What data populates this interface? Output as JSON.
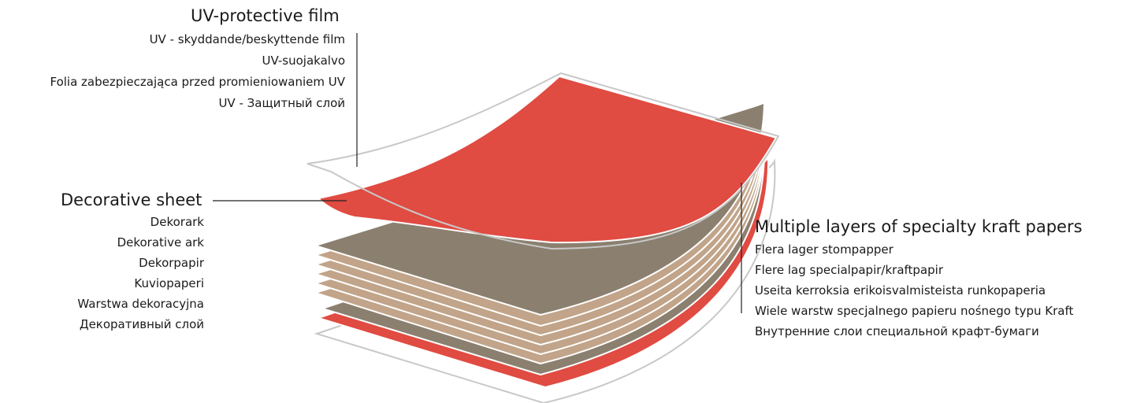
{
  "uv_film": {
    "title": "UV-protective film",
    "translations": [
      "UV - skyddande/beskyttende film",
      "UV-suojakalvo",
      "Folia zabezpieczająca przed promieniowaniem UV",
      "UV - Защитный слой"
    ]
  },
  "decorative_sheet": {
    "title": "Decorative sheet",
    "translations": [
      "Dekorark",
      "Dekorative ark",
      "Dekorpapir",
      "Kuviopaperi",
      "Warstwa dekoracyjna",
      "Декоративный слой"
    ]
  },
  "kraft_papers": {
    "title": "Multiple layers of specialty kraft papers",
    "translations": [
      "Flera lager stompapper",
      "Flere lag specialpapir/kraftpapir",
      "Useita kerroksia erikoisvalmisteista runkopaperia",
      "Wiele warstw specjalnego papieru nośnego typu Kraft",
      "Внутренние слои специальной крафт-бумаги"
    ]
  },
  "colors": {
    "decorative_red": "#e04b42",
    "kraft_gray": "#8b806f",
    "kraft_tan": "#c1a489",
    "film_outline": "#c8c8c8",
    "leader_line": "#222222"
  }
}
